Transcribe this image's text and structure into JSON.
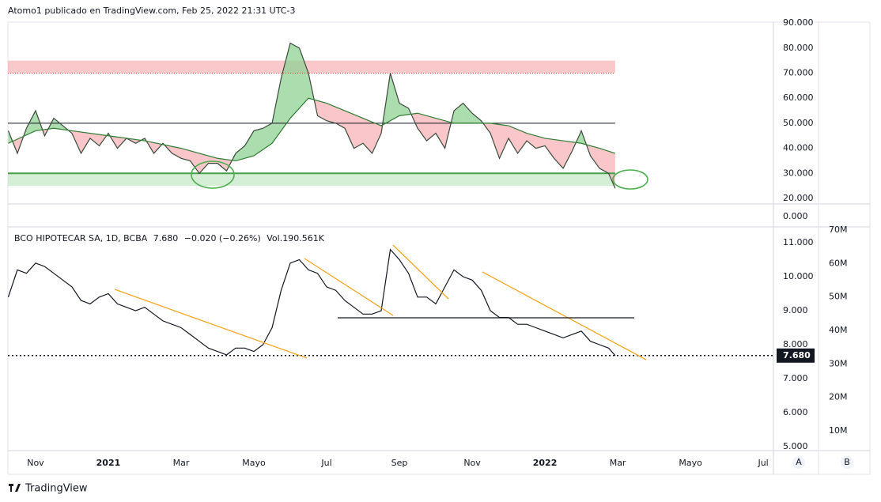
{
  "header": "Atomo1 publicado en TradingView.com, Feb 25, 2022 21:31 UTC-3",
  "footer": "TradingView",
  "axis_buttons": [
    "A",
    "B"
  ],
  "extra_pane": {
    "yticks": [
      {
        "value": 0,
        "label": "0.000"
      }
    ]
  },
  "chart_data": [
    {
      "type": "line",
      "xlim": [
        9.24,
        30.28
      ],
      "ylim": [
        17.79,
        90.35
      ],
      "yticks": [
        {
          "value": 20,
          "label": "20.000"
        },
        {
          "value": 30,
          "label": "30.000"
        },
        {
          "value": 40,
          "label": "40.000"
        },
        {
          "value": 50,
          "label": "50.000"
        },
        {
          "value": 60,
          "label": "60.000"
        },
        {
          "value": 70,
          "label": "70.000"
        },
        {
          "value": 80,
          "label": "80.000"
        },
        {
          "value": 90,
          "label": "90.000"
        }
      ],
      "levels": [
        70,
        50,
        30
      ],
      "bands": [
        {
          "from": 70,
          "to": 75,
          "color": "#f7a1a8"
        },
        {
          "from": 25,
          "to": 30,
          "color": "#b9e2bb"
        }
      ],
      "fill_colors": {
        "above": "#8fd194",
        "below": "#f8b3b8"
      },
      "series": [
        {
          "color": "#3a4a3a",
          "x": [
            9.25,
            9.5,
            9.75,
            10,
            10.25,
            10.5,
            10.75,
            11,
            11.25,
            11.5,
            11.75,
            12,
            12.25,
            12.5,
            12.75,
            13,
            13.25,
            13.5,
            13.75,
            14,
            14.25,
            14.5,
            14.75,
            15,
            15.25,
            15.5,
            15.75,
            16,
            16.25,
            16.5,
            16.75,
            17,
            17.25,
            17.5,
            17.75,
            18,
            18.25,
            18.5,
            18.75,
            19,
            19.25,
            19.5,
            19.75,
            20,
            20.25,
            20.5,
            20.75,
            21,
            21.25,
            21.5,
            21.75,
            22,
            22.25,
            22.5,
            22.75,
            23,
            23.25,
            23.5,
            23.75,
            24,
            24.25,
            24.5,
            24.75,
            25,
            25.25,
            25.5,
            25.75,
            25.93
          ],
          "values": [
            47,
            38,
            48,
            55,
            45,
            52,
            49,
            46,
            38,
            44,
            41,
            46,
            40,
            44,
            42,
            44,
            38,
            42,
            38,
            36,
            35,
            30,
            34,
            34,
            31,
            38,
            41,
            47,
            48,
            50,
            68,
            82,
            80,
            70,
            53,
            51,
            50,
            48,
            40,
            42,
            38,
            46,
            70,
            58,
            56,
            48,
            43,
            46,
            40,
            55,
            58,
            54,
            51,
            46,
            36,
            44,
            38,
            43,
            40,
            41,
            36,
            32,
            39,
            47,
            37,
            32,
            30,
            24
          ]
        },
        {
          "color": "#2e7d32",
          "x": [
            9.25,
            10,
            10.5,
            11,
            12,
            13,
            14,
            14.5,
            15,
            15.5,
            16,
            16.5,
            17,
            17.5,
            18,
            18.5,
            19,
            19.5,
            20,
            20.5,
            21,
            21.5,
            22,
            22.5,
            23,
            23.5,
            24,
            24.5,
            25,
            25.5,
            25.93
          ],
          "values": [
            42,
            47,
            48,
            47,
            45,
            43,
            40,
            38,
            36,
            35,
            37,
            42,
            52,
            60,
            58,
            55,
            52,
            49,
            53,
            54,
            52,
            50,
            50,
            50,
            49,
            46,
            44,
            43,
            42,
            40,
            38
          ]
        }
      ]
    },
    {
      "type": "line",
      "title": "BCO HIPOTECAR SA, 1D, BCBA",
      "quote": "7.680",
      "change": "−0.020 (−0.26%)",
      "volume": "Vol.190.561K",
      "xlim": [
        9.24,
        30.28
      ],
      "xticks": [
        {
          "value": 10,
          "label": "Nov"
        },
        {
          "value": 12,
          "label": "2021"
        },
        {
          "value": 14,
          "label": "Mar"
        },
        {
          "value": 16,
          "label": "Mayo"
        },
        {
          "value": 18,
          "label": "Jul"
        },
        {
          "value": 20,
          "label": "Sep"
        },
        {
          "value": 22,
          "label": "Nov"
        },
        {
          "value": 24,
          "label": "2022"
        },
        {
          "value": 26,
          "label": "Mar"
        },
        {
          "value": 28,
          "label": "Mayo"
        },
        {
          "value": 30,
          "label": "Jul"
        }
      ],
      "ylim": [
        4.884,
        11.465
      ],
      "yticks": [
        {
          "value": 5,
          "label": "5.000"
        },
        {
          "value": 6,
          "label": "6.000"
        },
        {
          "value": 7,
          "label": "7.000"
        },
        {
          "value": 8,
          "label": "8.000"
        },
        {
          "value": 9,
          "label": "9.000"
        },
        {
          "value": 10,
          "label": "10.000"
        },
        {
          "value": 11,
          "label": "11.000"
        }
      ],
      "y2lim": [
        4070000,
        70940000
      ],
      "y2ticks": [
        {
          "value": 10000000,
          "label": "10M"
        },
        {
          "value": 20000000,
          "label": "20M"
        },
        {
          "value": 30000000,
          "label": "30M"
        },
        {
          "value": 40000000,
          "label": "40M"
        },
        {
          "value": 50000000,
          "label": "50M"
        },
        {
          "value": 60000000,
          "label": "60M"
        },
        {
          "value": 70000000,
          "label": "70M"
        }
      ],
      "series": [
        {
          "color": "#131722",
          "x": [
            9.25,
            9.5,
            9.75,
            10,
            10.25,
            10.5,
            10.75,
            11,
            11.25,
            11.5,
            11.75,
            12,
            12.25,
            12.5,
            12.75,
            13,
            13.25,
            13.5,
            13.75,
            14,
            14.25,
            14.5,
            14.75,
            15,
            15.25,
            15.5,
            15.75,
            16,
            16.25,
            16.5,
            16.75,
            17,
            17.25,
            17.5,
            17.75,
            18,
            18.25,
            18.5,
            18.75,
            19,
            19.25,
            19.5,
            19.75,
            20,
            20.25,
            20.5,
            20.75,
            21,
            21.25,
            21.5,
            21.75,
            22,
            22.25,
            22.5,
            22.75,
            23,
            23.25,
            23.5,
            23.75,
            24,
            24.25,
            24.5,
            24.75,
            25,
            25.25,
            25.5,
            25.75,
            25.93
          ],
          "values": [
            9.4,
            10.2,
            10.1,
            10.4,
            10.3,
            10.1,
            9.9,
            9.7,
            9.3,
            9.2,
            9.4,
            9.5,
            9.2,
            9.1,
            9.0,
            9.1,
            8.9,
            8.7,
            8.6,
            8.5,
            8.3,
            8.1,
            7.9,
            7.8,
            7.7,
            7.9,
            7.9,
            7.8,
            8.0,
            8.5,
            9.6,
            10.4,
            10.5,
            10.2,
            10.1,
            9.7,
            9.6,
            9.3,
            9.1,
            8.9,
            8.9,
            9.0,
            10.8,
            10.5,
            10.1,
            9.4,
            9.4,
            9.2,
            9.7,
            10.2,
            10.0,
            9.9,
            9.6,
            9.0,
            8.8,
            8.8,
            8.6,
            8.6,
            8.5,
            8.4,
            8.3,
            8.2,
            8.3,
            8.4,
            8.1,
            8.0,
            7.9,
            7.68
          ]
        }
      ]
    }
  ]
}
